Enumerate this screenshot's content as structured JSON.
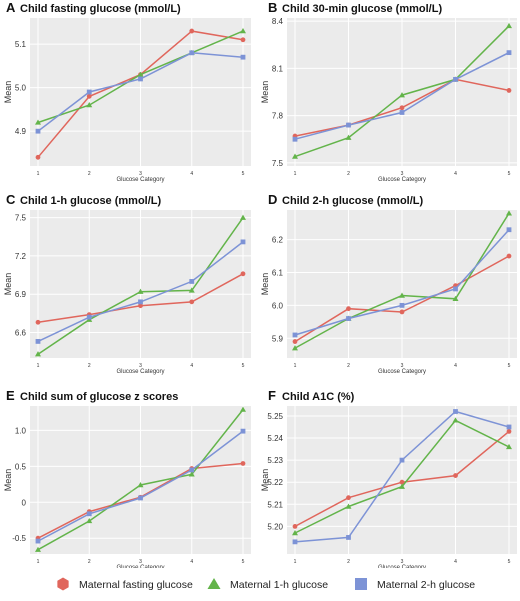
{
  "colors": {
    "maternal_fasting": "#e0665c",
    "maternal_1h": "#63b44a",
    "maternal_2h": "#7d93d6",
    "panel_bg": "#ebebeb",
    "grid": "#ffffff"
  },
  "legend": {
    "items": [
      {
        "label": "Maternal fasting glucose",
        "marker": "hexagon",
        "color": "#e0665c"
      },
      {
        "label": "Maternal 1-h glucose",
        "marker": "triangle",
        "color": "#63b44a"
      },
      {
        "label": "Maternal 2-h glucose",
        "marker": "square",
        "color": "#7d93d6"
      }
    ]
  },
  "chart_data": [
    {
      "letter": "A",
      "title": "Child fasting glucose (mmol/L)",
      "type": "line",
      "xlabel": "Glucose Category",
      "ylabel": "Mean",
      "categories": [
        "1",
        "2",
        "3",
        "4",
        "5"
      ],
      "ylim": [
        4.82,
        5.16
      ],
      "yticks": [
        "4.9",
        "5.0",
        "5.1"
      ],
      "series": [
        {
          "name": "Maternal fasting glucose",
          "values": [
            4.84,
            4.98,
            5.03,
            5.13,
            5.11
          ]
        },
        {
          "name": "Maternal 1-h glucose",
          "values": [
            4.92,
            4.96,
            5.03,
            5.08,
            5.13
          ]
        },
        {
          "name": "Maternal 2-h glucose",
          "values": [
            4.9,
            4.99,
            5.02,
            5.08,
            5.07
          ]
        }
      ]
    },
    {
      "letter": "B",
      "title": "Child 30-min glucose (mmol/L)",
      "type": "line",
      "xlabel": "Glucose Category",
      "ylabel": "Mean",
      "categories": [
        "1",
        "2",
        "3",
        "4",
        "5"
      ],
      "ylim": [
        7.48,
        8.42
      ],
      "yticks": [
        "7.5",
        "7.8",
        "8.1",
        "8.4"
      ],
      "series": [
        {
          "name": "Maternal fasting glucose",
          "values": [
            7.67,
            7.74,
            7.85,
            8.03,
            7.96
          ]
        },
        {
          "name": "Maternal 1-h glucose",
          "values": [
            7.54,
            7.66,
            7.93,
            8.03,
            8.37
          ]
        },
        {
          "name": "Maternal 2-h glucose",
          "values": [
            7.65,
            7.74,
            7.82,
            8.03,
            8.2
          ]
        }
      ]
    },
    {
      "letter": "C",
      "title": "Child 1-h glucose (mmol/L)",
      "type": "line",
      "xlabel": "Glucose Category",
      "ylabel": "Mean",
      "categories": [
        "1",
        "2",
        "3",
        "4",
        "5"
      ],
      "ylim": [
        6.4,
        7.56
      ],
      "yticks": [
        "6.6",
        "6.9",
        "7.2",
        "7.5"
      ],
      "series": [
        {
          "name": "Maternal fasting glucose",
          "values": [
            6.68,
            6.74,
            6.81,
            6.84,
            7.06
          ]
        },
        {
          "name": "Maternal 1-h glucose",
          "values": [
            6.43,
            6.7,
            6.92,
            6.93,
            7.5
          ]
        },
        {
          "name": "Maternal 2-h glucose",
          "values": [
            6.53,
            6.72,
            6.84,
            7.0,
            7.31
          ]
        }
      ]
    },
    {
      "letter": "D",
      "title": "Child 2-h glucose (mmol/L)",
      "type": "line",
      "xlabel": "Glucose Category",
      "ylabel": "Mean",
      "categories": [
        "1",
        "2",
        "3",
        "4",
        "5"
      ],
      "ylim": [
        5.84,
        6.29
      ],
      "yticks": [
        "5.9",
        "6.0",
        "6.1",
        "6.2"
      ],
      "series": [
        {
          "name": "Maternal fasting glucose",
          "values": [
            5.89,
            5.99,
            5.98,
            6.06,
            6.15
          ]
        },
        {
          "name": "Maternal 1-h glucose",
          "values": [
            5.87,
            5.96,
            6.03,
            6.02,
            6.28
          ]
        },
        {
          "name": "Maternal 2-h glucose",
          "values": [
            5.91,
            5.96,
            6.0,
            6.05,
            6.23
          ]
        }
      ]
    },
    {
      "letter": "E",
      "title": "Child sum of glucose z scores",
      "type": "line",
      "xlabel": "Glucose Category",
      "ylabel": "Mean",
      "categories": [
        "1",
        "2",
        "3",
        "4",
        "5"
      ],
      "ylim": [
        -0.72,
        1.34
      ],
      "yticks": [
        "-0.5",
        "0",
        "0.5",
        "1.0"
      ],
      "series": [
        {
          "name": "Maternal fasting glucose",
          "values": [
            -0.5,
            -0.13,
            0.07,
            0.47,
            0.54
          ]
        },
        {
          "name": "Maternal 1-h glucose",
          "values": [
            -0.66,
            -0.26,
            0.24,
            0.39,
            1.29
          ]
        },
        {
          "name": "Maternal 2-h glucose",
          "values": [
            -0.54,
            -0.16,
            0.06,
            0.45,
            0.99
          ]
        }
      ]
    },
    {
      "letter": "F",
      "title": "Child A1C (%)",
      "type": "line",
      "xlabel": "Glucose Category",
      "ylabel": "Mean",
      "categories": [
        "1",
        "2",
        "3",
        "4",
        "5"
      ],
      "ylim": [
        5.1875,
        5.2545
      ],
      "yticks": [
        "5.20",
        "5.21",
        "5.22",
        "5.23",
        "5.24",
        "5.25"
      ],
      "series": [
        {
          "name": "Maternal fasting glucose",
          "values": [
            5.2,
            5.213,
            5.22,
            5.223,
            5.243
          ]
        },
        {
          "name": "Maternal 1-h glucose",
          "values": [
            5.197,
            5.209,
            5.218,
            5.248,
            5.236
          ]
        },
        {
          "name": "Maternal 2-h glucose",
          "values": [
            5.193,
            5.195,
            5.23,
            5.252,
            5.245
          ]
        }
      ]
    }
  ]
}
